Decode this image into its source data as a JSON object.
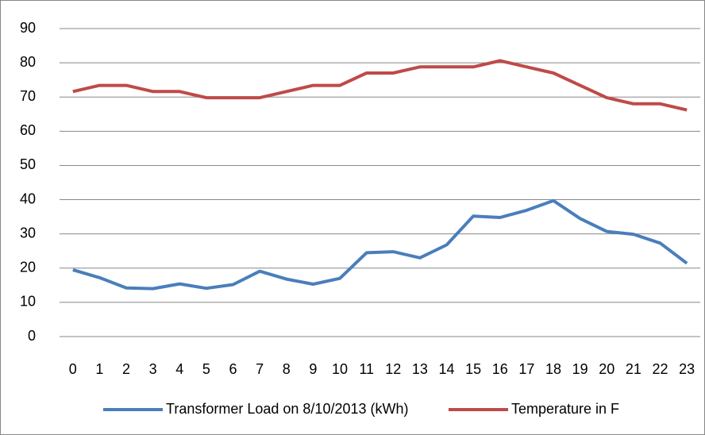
{
  "chart_data": {
    "type": "line",
    "categories": [
      "0",
      "1",
      "2",
      "3",
      "4",
      "5",
      "6",
      "7",
      "8",
      "9",
      "10",
      "11",
      "12",
      "13",
      "14",
      "15",
      "16",
      "17",
      "18",
      "19",
      "20",
      "21",
      "22",
      "23"
    ],
    "series": [
      {
        "name": "Transformer Load on 8/10/2013 (kWh)",
        "color": "#4a7ebb",
        "values": [
          19.5,
          17.2,
          14.2,
          14,
          15.4,
          14.1,
          15.2,
          19.1,
          16.8,
          15.3,
          17,
          24.5,
          24.8,
          23,
          26.8,
          35.2,
          34.8,
          36.9,
          39.7,
          34.5,
          30.7,
          29.9,
          27.3,
          21.4
        ]
      },
      {
        "name": "Temperature in F",
        "color": "#be4b48",
        "values": [
          71.6,
          73.4,
          73.4,
          71.6,
          71.6,
          69.8,
          69.8,
          69.8,
          71.6,
          73.4,
          73.4,
          77,
          77,
          78.8,
          78.8,
          78.8,
          80.6,
          78.8,
          77,
          73.4,
          69.8,
          68,
          68,
          66.2
        ]
      }
    ],
    "ylim": [
      0,
      90
    ],
    "yticks": [
      0,
      10,
      20,
      30,
      40,
      50,
      60,
      70,
      80,
      90
    ],
    "grid": true,
    "legend": "bottom"
  }
}
